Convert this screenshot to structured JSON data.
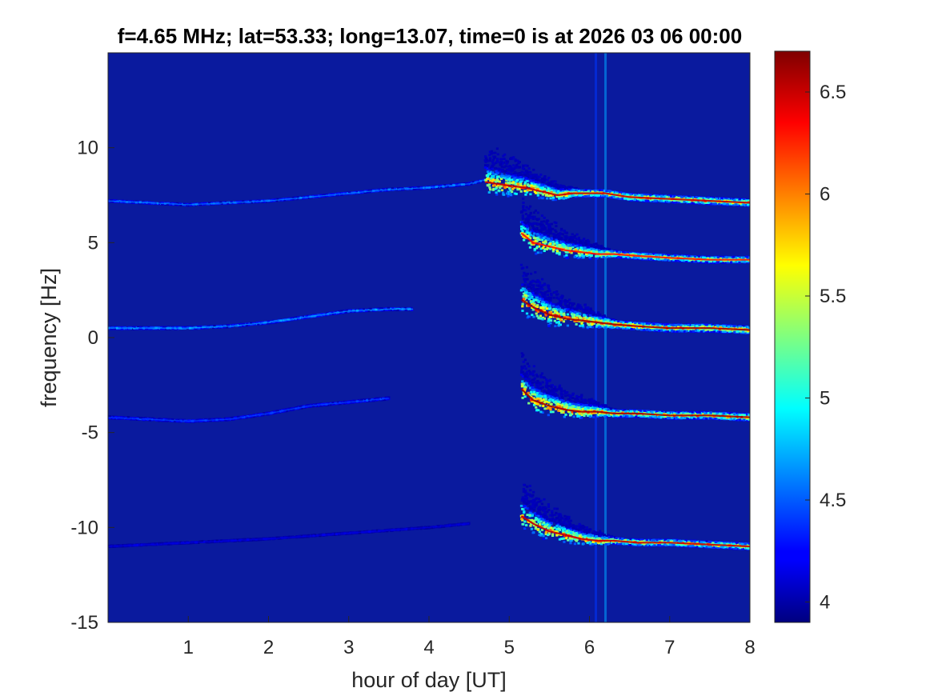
{
  "chart_data": {
    "type": "heatmap",
    "title": "f=4.65 MHz;  lat=53.33; long=13.07, time=0 is at 2026 03 06 00:00",
    "xlabel": "hour of day [UT]",
    "ylabel": "frequency [Hz]",
    "xlim": [
      0,
      8
    ],
    "ylim": [
      -15,
      15
    ],
    "x_ticks": [
      1,
      2,
      3,
      4,
      5,
      6,
      7,
      8
    ],
    "y_ticks": [
      -15,
      -10,
      -5,
      0,
      5,
      10
    ],
    "colorbar": {
      "colormap": "jet",
      "range": [
        3.9,
        6.7
      ],
      "ticks": [
        4,
        4.5,
        5,
        5.5,
        6,
        6.5
      ]
    },
    "background_color": "#0a1a9e",
    "traces": [
      {
        "points": [
          [
            0.0,
            7.2
          ],
          [
            0.5,
            7.1
          ],
          [
            1.0,
            7.0
          ],
          [
            1.5,
            7.1
          ],
          [
            2.0,
            7.2
          ],
          [
            2.5,
            7.4
          ],
          [
            3.0,
            7.6
          ],
          [
            3.5,
            7.8
          ],
          [
            4.0,
            7.9
          ],
          [
            4.5,
            8.1
          ],
          [
            4.7,
            8.3
          ]
        ],
        "intensity": 4.7,
        "spread": 0.12
      },
      {
        "points": [
          [
            4.7,
            8.2
          ],
          [
            5.0,
            8.0
          ],
          [
            5.2,
            7.9
          ],
          [
            5.4,
            7.7
          ],
          [
            5.6,
            7.5
          ],
          [
            5.8,
            7.6
          ],
          [
            6.0,
            7.6
          ],
          [
            6.2,
            7.6
          ],
          [
            6.5,
            7.4
          ],
          [
            7.0,
            7.3
          ],
          [
            7.5,
            7.2
          ],
          [
            8.0,
            7.1
          ]
        ],
        "intensity": 6.5,
        "spread": 0.5
      },
      {
        "points": [
          [
            5.15,
            5.5
          ],
          [
            5.3,
            5.0
          ],
          [
            5.5,
            4.8
          ],
          [
            5.7,
            4.6
          ],
          [
            5.9,
            4.5
          ],
          [
            6.1,
            4.4
          ],
          [
            6.3,
            4.4
          ],
          [
            6.6,
            4.3
          ],
          [
            7.0,
            4.2
          ],
          [
            7.5,
            4.1
          ],
          [
            8.0,
            4.1
          ]
        ],
        "intensity": 6.3,
        "spread": 0.45
      },
      {
        "points": [
          [
            0.0,
            0.5
          ],
          [
            0.5,
            0.5
          ],
          [
            1.0,
            0.5
          ],
          [
            1.5,
            0.6
          ],
          [
            2.0,
            0.8
          ],
          [
            2.5,
            1.1
          ],
          [
            3.0,
            1.4
          ],
          [
            3.5,
            1.5
          ],
          [
            3.8,
            1.5
          ]
        ],
        "intensity": 4.8,
        "spread": 0.15
      },
      {
        "points": [
          [
            5.15,
            2.0
          ],
          [
            5.3,
            1.6
          ],
          [
            5.5,
            1.2
          ],
          [
            5.7,
            1.0
          ],
          [
            5.9,
            0.9
          ],
          [
            6.1,
            0.8
          ],
          [
            6.3,
            0.7
          ],
          [
            6.6,
            0.6
          ],
          [
            7.0,
            0.5
          ],
          [
            7.5,
            0.5
          ],
          [
            8.0,
            0.4
          ]
        ],
        "intensity": 6.6,
        "spread": 0.55
      },
      {
        "points": [
          [
            0.0,
            -4.2
          ],
          [
            0.5,
            -4.3
          ],
          [
            1.0,
            -4.4
          ],
          [
            1.5,
            -4.3
          ],
          [
            2.0,
            -4.0
          ],
          [
            2.5,
            -3.6
          ],
          [
            3.0,
            -3.4
          ],
          [
            3.5,
            -3.2
          ]
        ],
        "intensity": 4.5,
        "spread": 0.15
      },
      {
        "points": [
          [
            5.15,
            -2.7
          ],
          [
            5.3,
            -3.3
          ],
          [
            5.5,
            -3.6
          ],
          [
            5.7,
            -3.8
          ],
          [
            5.9,
            -3.9
          ],
          [
            6.1,
            -3.9
          ],
          [
            6.3,
            -4.0
          ],
          [
            6.6,
            -4.0
          ],
          [
            7.0,
            -4.1
          ],
          [
            7.5,
            -4.1
          ],
          [
            8.0,
            -4.2
          ]
        ],
        "intensity": 6.6,
        "spread": 0.5
      },
      {
        "points": [
          [
            0.0,
            -11.0
          ],
          [
            1.0,
            -10.8
          ],
          [
            2.0,
            -10.6
          ],
          [
            3.0,
            -10.3
          ],
          [
            4.0,
            -10.0
          ],
          [
            4.5,
            -9.8
          ]
        ],
        "intensity": 4.2,
        "spread": 0.1
      },
      {
        "points": [
          [
            5.15,
            -9.4
          ],
          [
            5.3,
            -9.8
          ],
          [
            5.5,
            -10.2
          ],
          [
            5.7,
            -10.4
          ],
          [
            5.9,
            -10.6
          ],
          [
            6.1,
            -10.7
          ],
          [
            6.3,
            -10.7
          ],
          [
            6.6,
            -10.8
          ],
          [
            7.0,
            -10.8
          ],
          [
            7.5,
            -10.9
          ],
          [
            8.0,
            -11.0
          ]
        ],
        "intensity": 6.5,
        "spread": 0.45
      }
    ],
    "vertical_streaks": [
      {
        "x": 6.08,
        "intensity": 4.4
      },
      {
        "x": 6.2,
        "intensity": 4.7
      }
    ]
  }
}
